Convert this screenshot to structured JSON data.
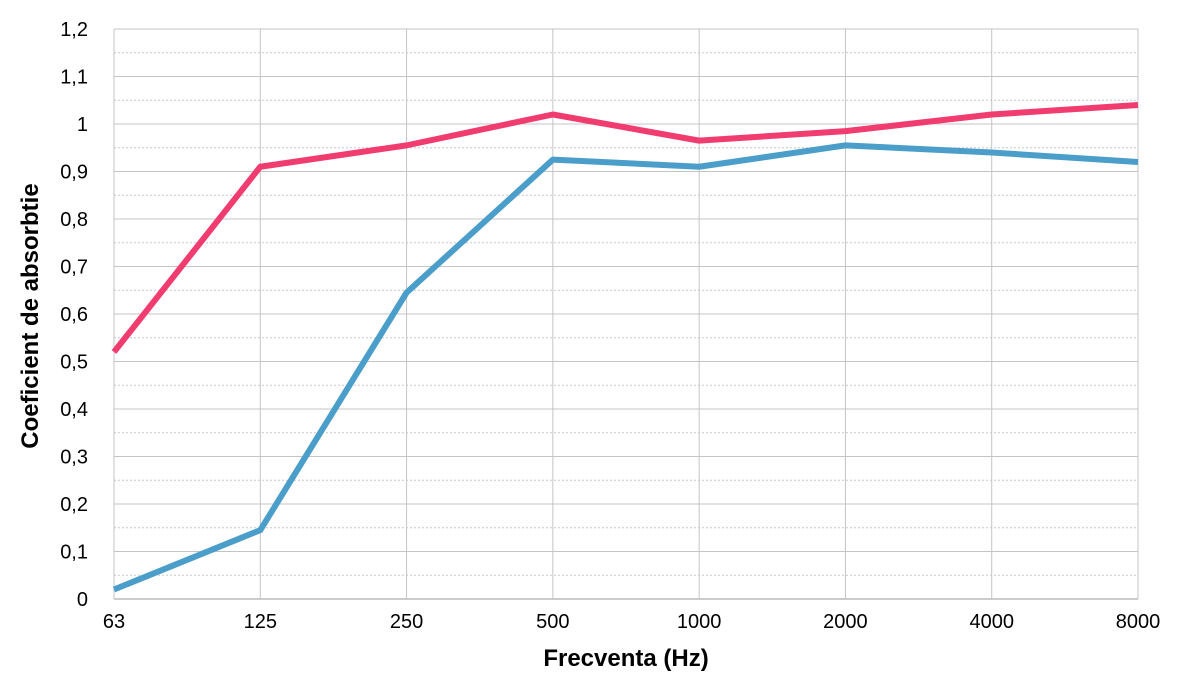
{
  "chart_data": {
    "type": "line",
    "categories": [
      "63",
      "125",
      "250",
      "500",
      "1000",
      "2000",
      "4000",
      "8000"
    ],
    "xlabel": "Frecventa (Hz)",
    "ylabel": "Coeficient de absorbtie",
    "ylim": [
      0,
      1.2
    ],
    "y_ticks": [
      "0",
      "0,1",
      "0,2",
      "0,3",
      "0,4",
      "0,5",
      "0,6",
      "0,7",
      "0,8",
      "0,9",
      "1",
      "1,1",
      "1,2"
    ],
    "grid": true,
    "legend": "none",
    "series": [
      {
        "color": "#f03c6e",
        "values": [
          0.52,
          0.91,
          0.955,
          1.02,
          0.965,
          0.985,
          1.02,
          1.04
        ]
      },
      {
        "color": "#4a9ec9",
        "values": [
          0.02,
          0.145,
          0.645,
          0.925,
          0.91,
          0.955,
          0.94,
          0.92
        ]
      }
    ]
  }
}
